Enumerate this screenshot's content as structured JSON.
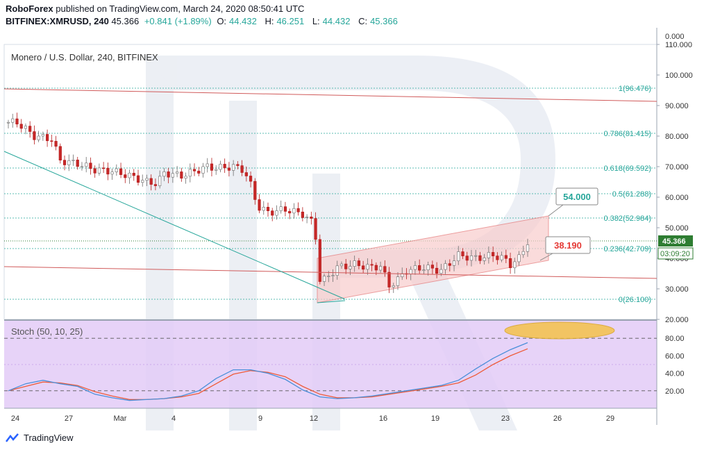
{
  "header": {
    "publisher": "RoboForex",
    "published_text": "published on TradingView.com, March 24, 2020 08:50:41 UTC",
    "symbol": "BITFINEX:XMRUSD, 240",
    "last": "45.366",
    "change": "+0.841 (+1.89%)",
    "o_label": "O:",
    "o_value": "44.432",
    "h_label": "H:",
    "h_value": "46.251",
    "l_label": "L:",
    "l_value": "44.432",
    "c_label": "C:",
    "c_value": "45.366"
  },
  "pane_title": "Monero / U.S. Dollar, 240, BITFINEX",
  "stoch_title": "Stoch (50, 10, 25)",
  "footer": {
    "brand": "TradingView"
  },
  "colors": {
    "up": "#26a69a",
    "down": "#ef5350",
    "candle_dark": "#6d6d6d",
    "fib": "#26a69a",
    "trend_red": "#d05a5a",
    "trend_teal": "#26a69a",
    "stoch_k": "#4a8fd9",
    "stoch_d": "#ee5b39",
    "stoch_bg": "#e3cbf7",
    "channel_fill": "#f8cccc",
    "price_tag": "#2e7d32"
  },
  "chart_data": {
    "type": "candlestick",
    "price_axis": {
      "ylim": [
        20,
        110
      ],
      "ticks": [
        "110.000",
        "100.000",
        "90.000",
        "80.000",
        "70.000",
        "60.000",
        "50.000",
        "40.000",
        "30.000",
        "20.000"
      ],
      "top_tick": "0.000"
    },
    "stoch_axis": {
      "ylim": [
        0,
        100
      ],
      "ticks": [
        "80.00",
        "60.00",
        "40.00",
        "20.00"
      ]
    },
    "x_ticks": [
      "24",
      "27",
      "Mar",
      "4",
      "9",
      "12",
      "16",
      "19",
      "23",
      "26",
      "29"
    ],
    "current_price_label": "45.366",
    "countdown_label": "03:09:20",
    "fib_levels": [
      {
        "ratio": "1",
        "value": "96.476",
        "label": "1(96.476)"
      },
      {
        "ratio": "0.786",
        "value": "81.415",
        "label": "0.786(81.415)"
      },
      {
        "ratio": "0.618",
        "value": "69.592",
        "label": "0.618(69.592)"
      },
      {
        "ratio": "0.5",
        "value": "61.288",
        "label": "0.5(61.288)"
      },
      {
        "ratio": "0.382",
        "value": "52.984",
        "label": "0.382(52.984)"
      },
      {
        "ratio": "0.236",
        "value": "42.709",
        "label": "0.236(42.709)"
      },
      {
        "ratio": "0",
        "value": "26.100",
        "label": "0(26.100)"
      }
    ],
    "targets": [
      {
        "label": "54.000",
        "color": "#26a69a"
      },
      {
        "label": "38.190",
        "color": "#e53935"
      }
    ],
    "price_series": [
      {
        "x": 0.5,
        "y": 84.5
      },
      {
        "x": 1.5,
        "y": 80
      },
      {
        "x": 2.5,
        "y": 79
      },
      {
        "x": 3,
        "y": 72
      },
      {
        "x": 4,
        "y": 71
      },
      {
        "x": 5,
        "y": 69
      },
      {
        "x": 6,
        "y": 68.5
      },
      {
        "x": 7,
        "y": 67
      },
      {
        "x": 8,
        "y": 65
      },
      {
        "x": 8.6,
        "y": 64.5
      },
      {
        "x": 9,
        "y": 68
      },
      {
        "x": 10,
        "y": 67
      },
      {
        "x": 11,
        "y": 69
      },
      {
        "x": 11.5,
        "y": 70
      },
      {
        "x": 12,
        "y": 69.5
      },
      {
        "x": 13,
        "y": 70
      },
      {
        "x": 13.6,
        "y": 69
      },
      {
        "x": 14,
        "y": 64
      },
      {
        "x": 14.4,
        "y": 57
      },
      {
        "x": 15,
        "y": 55
      },
      {
        "x": 16,
        "y": 56
      },
      {
        "x": 17,
        "y": 54.5
      },
      {
        "x": 17.5,
        "y": 52
      },
      {
        "x": 17.9,
        "y": 44
      },
      {
        "x": 18,
        "y": 33
      },
      {
        "x": 18.3,
        "y": 33
      },
      {
        "x": 19,
        "y": 37
      },
      {
        "x": 20,
        "y": 38
      },
      {
        "x": 21,
        "y": 37
      },
      {
        "x": 21.5,
        "y": 37.5
      },
      {
        "x": 22,
        "y": 31
      },
      {
        "x": 22.5,
        "y": 33
      },
      {
        "x": 23,
        "y": 36
      },
      {
        "x": 24,
        "y": 37
      },
      {
        "x": 25,
        "y": 36
      },
      {
        "x": 26,
        "y": 41
      },
      {
        "x": 27,
        "y": 40
      },
      {
        "x": 28,
        "y": 41
      },
      {
        "x": 28.6,
        "y": 40
      },
      {
        "x": 29,
        "y": 38
      },
      {
        "x": 29.5,
        "y": 40
      },
      {
        "x": 30,
        "y": 45.4
      }
    ],
    "stoch_k": [
      {
        "x": 0,
        "y": 20
      },
      {
        "x": 1,
        "y": 28
      },
      {
        "x": 2,
        "y": 32
      },
      {
        "x": 3,
        "y": 28
      },
      {
        "x": 4,
        "y": 25
      },
      {
        "x": 5,
        "y": 16
      },
      {
        "x": 6,
        "y": 12
      },
      {
        "x": 7,
        "y": 9
      },
      {
        "x": 8,
        "y": 10
      },
      {
        "x": 9,
        "y": 11
      },
      {
        "x": 10,
        "y": 14
      },
      {
        "x": 11,
        "y": 20
      },
      {
        "x": 12,
        "y": 34
      },
      {
        "x": 13,
        "y": 44
      },
      {
        "x": 14,
        "y": 44
      },
      {
        "x": 15,
        "y": 40
      },
      {
        "x": 16,
        "y": 33
      },
      {
        "x": 17,
        "y": 21
      },
      {
        "x": 18,
        "y": 13
      },
      {
        "x": 19,
        "y": 11
      },
      {
        "x": 20,
        "y": 12
      },
      {
        "x": 21,
        "y": 14
      },
      {
        "x": 22,
        "y": 17
      },
      {
        "x": 23,
        "y": 20
      },
      {
        "x": 24,
        "y": 23
      },
      {
        "x": 25,
        "y": 26
      },
      {
        "x": 26,
        "y": 32
      },
      {
        "x": 27,
        "y": 45
      },
      {
        "x": 28,
        "y": 57
      },
      {
        "x": 29,
        "y": 67
      },
      {
        "x": 30,
        "y": 75
      }
    ],
    "stoch_d": [
      {
        "x": 0,
        "y": 20
      },
      {
        "x": 1,
        "y": 25
      },
      {
        "x": 2,
        "y": 30
      },
      {
        "x": 3,
        "y": 29
      },
      {
        "x": 4,
        "y": 26
      },
      {
        "x": 5,
        "y": 19
      },
      {
        "x": 6,
        "y": 14
      },
      {
        "x": 7,
        "y": 10
      },
      {
        "x": 8,
        "y": 10
      },
      {
        "x": 9,
        "y": 11
      },
      {
        "x": 10,
        "y": 13
      },
      {
        "x": 11,
        "y": 17
      },
      {
        "x": 12,
        "y": 28
      },
      {
        "x": 13,
        "y": 39
      },
      {
        "x": 14,
        "y": 43
      },
      {
        "x": 15,
        "y": 41
      },
      {
        "x": 16,
        "y": 36
      },
      {
        "x": 17,
        "y": 25
      },
      {
        "x": 18,
        "y": 16
      },
      {
        "x": 19,
        "y": 12
      },
      {
        "x": 20,
        "y": 12
      },
      {
        "x": 21,
        "y": 13
      },
      {
        "x": 22,
        "y": 16
      },
      {
        "x": 23,
        "y": 19
      },
      {
        "x": 24,
        "y": 22
      },
      {
        "x": 25,
        "y": 25
      },
      {
        "x": 26,
        "y": 29
      },
      {
        "x": 27,
        "y": 38
      },
      {
        "x": 28,
        "y": 50
      },
      {
        "x": 29,
        "y": 60
      },
      {
        "x": 30,
        "y": 68
      }
    ]
  }
}
